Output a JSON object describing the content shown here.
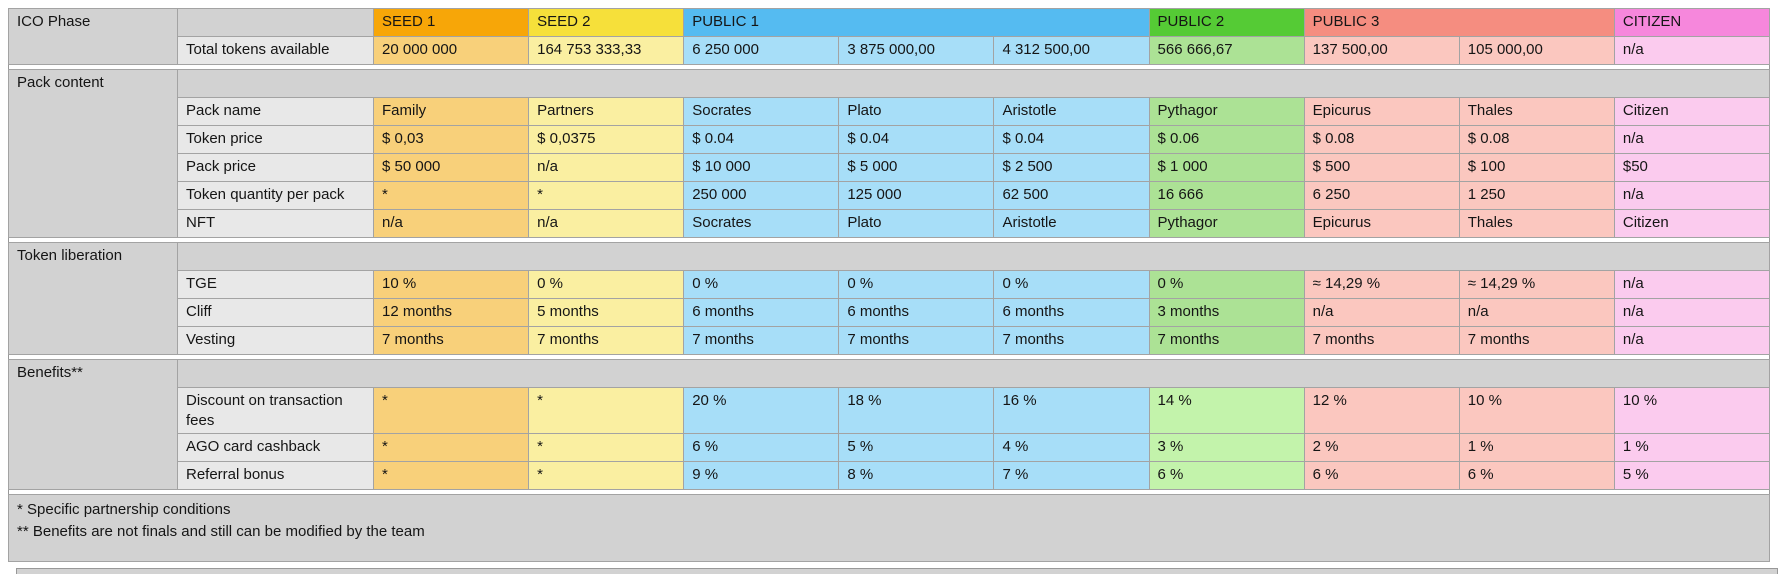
{
  "table": {
    "corner_label": "ICO Phase",
    "phases": [
      {
        "label": "SEED 1",
        "colspan": 1,
        "header_color": "#f7a608",
        "cell_color": "#f8d07a"
      },
      {
        "label": "SEED 2",
        "colspan": 1,
        "header_color": "#f6e03a",
        "cell_color": "#faefa1"
      },
      {
        "label": "PUBLIC 1",
        "colspan": 3,
        "header_color": "#55bbf1",
        "cell_color": "#a7def8"
      },
      {
        "label": "PUBLIC 2",
        "colspan": 1,
        "header_color": "#55cb35",
        "cell_color": "#ace295",
        "benefit_cell_color": "#c3f3ab"
      },
      {
        "label": "PUBLIC 3",
        "colspan": 2,
        "header_color": "#f58d80",
        "cell_color": "#fbc7bf"
      },
      {
        "label": "CITIZEN",
        "colspan": 1,
        "header_color": "#f687dc",
        "cell_color": "#fbcbee"
      }
    ],
    "total_row": {
      "label": "Total tokens available",
      "values": [
        "20 000 000",
        "164 753 333,33",
        "6 250 000",
        "3 875 000,00",
        "4 312 500,00",
        "566 666,67",
        "137 500,00",
        "105 000,00",
        "n/a"
      ]
    },
    "sections": [
      {
        "title": "Pack content",
        "rows": [
          {
            "label": "Pack name",
            "values": [
              "Family",
              "Partners",
              "Socrates",
              "Plato",
              "Aristotle",
              "Pythagor",
              "Epicurus",
              "Thales",
              "Citizen"
            ]
          },
          {
            "label": "Token price",
            "values": [
              "$ 0,03",
              "$ 0,0375",
              "$ 0.04",
              "$ 0.04",
              "$ 0.04",
              "$ 0.06",
              "$ 0.08",
              "$ 0.08",
              "n/a"
            ]
          },
          {
            "label": "Pack price",
            "values": [
              "$ 50 000",
              "n/a",
              "$ 10 000",
              "$ 5 000",
              "$ 2 500",
              "$ 1 000",
              "$ 500",
              "$ 100",
              "$50"
            ]
          },
          {
            "label": "Token quantity per pack",
            "values": [
              "*",
              "*",
              "250 000",
              "125 000",
              "62 500",
              "16 666",
              "6 250",
              "1 250",
              "n/a"
            ]
          },
          {
            "label": "NFT",
            "values": [
              "n/a",
              "n/a",
              "Socrates",
              "Plato",
              "Aristotle",
              "Pythagor",
              "Epicurus",
              "Thales",
              "Citizen"
            ]
          }
        ]
      },
      {
        "title": "Token liberation",
        "rows": [
          {
            "label": "TGE",
            "values": [
              "10 %",
              "0 %",
              "0 %",
              "0 %",
              "0 %",
              "0 %",
              "≈ 14,29 %",
              "≈ 14,29 %",
              "n/a"
            ]
          },
          {
            "label": "Cliff",
            "values": [
              "12 months",
              "5 months",
              "6 months",
              "6 months",
              "6 months",
              "3 months",
              "n/a",
              "n/a",
              "n/a"
            ]
          },
          {
            "label": "Vesting",
            "values": [
              "7 months",
              "7 months",
              "7 months",
              "7 months",
              "7 months",
              "7 months",
              "7 months",
              "7 months",
              "n/a"
            ]
          }
        ]
      },
      {
        "title": "Benefits**",
        "benefits": true,
        "rows": [
          {
            "label": "Discount on transaction fees",
            "tall": true,
            "values": [
              "*",
              "*",
              "20 %",
              "18 %",
              "16 %",
              "14 %",
              "12 %",
              "10 %",
              "10 %"
            ]
          },
          {
            "label": "AGO card cashback",
            "values": [
              "*",
              "*",
              "6 %",
              "5 %",
              "4 %",
              "3 %",
              "2 %",
              "1 %",
              "1 %"
            ]
          },
          {
            "label": "Referral bonus",
            "values": [
              "*",
              "*",
              "9 %",
              "8 %",
              "7 %",
              "6 %",
              "6 %",
              "6 %",
              "5 %"
            ]
          }
        ]
      }
    ],
    "footnotes": [
      "* Specific partnership conditions",
      "** Benefits are not finals and still can be modified by the team"
    ]
  },
  "colors": {
    "section_gray": "#d2d2d2",
    "label_gray": "#e8e8e8",
    "border_gray": "#a3a3a3"
  }
}
